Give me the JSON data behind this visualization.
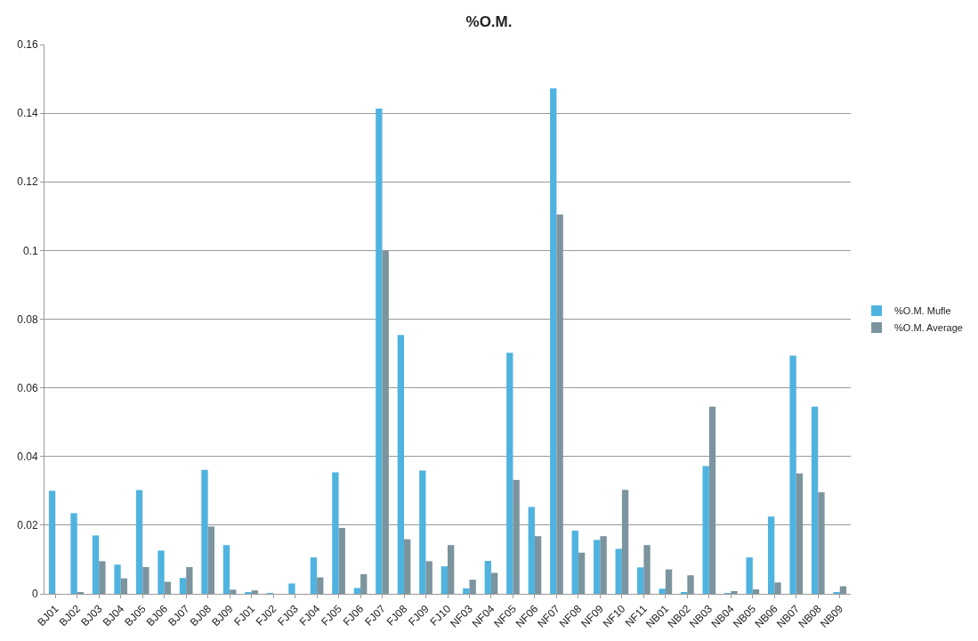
{
  "chart_data": {
    "type": "bar",
    "title": "%O.M.",
    "categories": [
      "BJ01",
      "BJ02",
      "BJ03",
      "BJ04",
      "BJ05",
      "BJ06",
      "BJ07",
      "BJ08",
      "BJ09",
      "FJ01",
      "FJ02",
      "FJ03",
      "FJ04",
      "FJ05",
      "FJ06",
      "FJ07",
      "FJ08",
      "FJ09",
      "FJ10",
      "NF03",
      "NF04",
      "NF05",
      "NF06",
      "NF07",
      "NF08",
      "NF09",
      "NF10",
      "NF11",
      "NB01",
      "NB02",
      "NB03",
      "NB04",
      "NB05",
      "NB06",
      "NB07",
      "NB08",
      "NB09"
    ],
    "series": [
      {
        "name": "%O.M. Mufle",
        "color": "#4fb3e0",
        "values": [
          0.03,
          0.0235,
          0.017,
          0.0085,
          0.0302,
          0.0126,
          0.0046,
          0.0361,
          0.0142,
          0.0003,
          0.0002,
          0.003,
          0.0106,
          0.0354,
          0.0017,
          0.1413,
          0.0754,
          0.0359,
          0.008,
          0.0016,
          0.0096,
          0.0702,
          0.0253,
          0.1472,
          0.0184,
          0.0157,
          0.0131,
          0.0077,
          0.0015,
          0.0003,
          0.0372,
          0.0002,
          0.0106,
          0.0225,
          0.0694,
          0.0545,
          0.0005
        ]
      },
      {
        "name": "%O.M. Average",
        "color": "#7c949e",
        "values": [
          null,
          0.0003,
          0.0095,
          0.0045,
          0.0078,
          0.0035,
          0.0078,
          0.0196,
          0.0012,
          0.001,
          null,
          null,
          0.0048,
          0.0192,
          0.0057,
          0.0999,
          0.0159,
          0.0095,
          0.0142,
          0.0041,
          0.0061,
          0.0332,
          0.0168,
          0.1105,
          0.012,
          0.0168,
          0.0303,
          0.0142,
          0.0071,
          0.0054,
          0.0545,
          0.0008,
          0.0013,
          0.0033,
          0.0351,
          0.0296,
          0.0022
        ]
      }
    ],
    "ylim": [
      0,
      0.16
    ],
    "yticks": [
      0,
      0.02,
      0.04,
      0.06,
      0.08,
      {
        "value": 0.1,
        "label": "0.1"
      },
      0.12,
      0.14,
      0.16
    ],
    "grid": "y",
    "legend": "right"
  }
}
